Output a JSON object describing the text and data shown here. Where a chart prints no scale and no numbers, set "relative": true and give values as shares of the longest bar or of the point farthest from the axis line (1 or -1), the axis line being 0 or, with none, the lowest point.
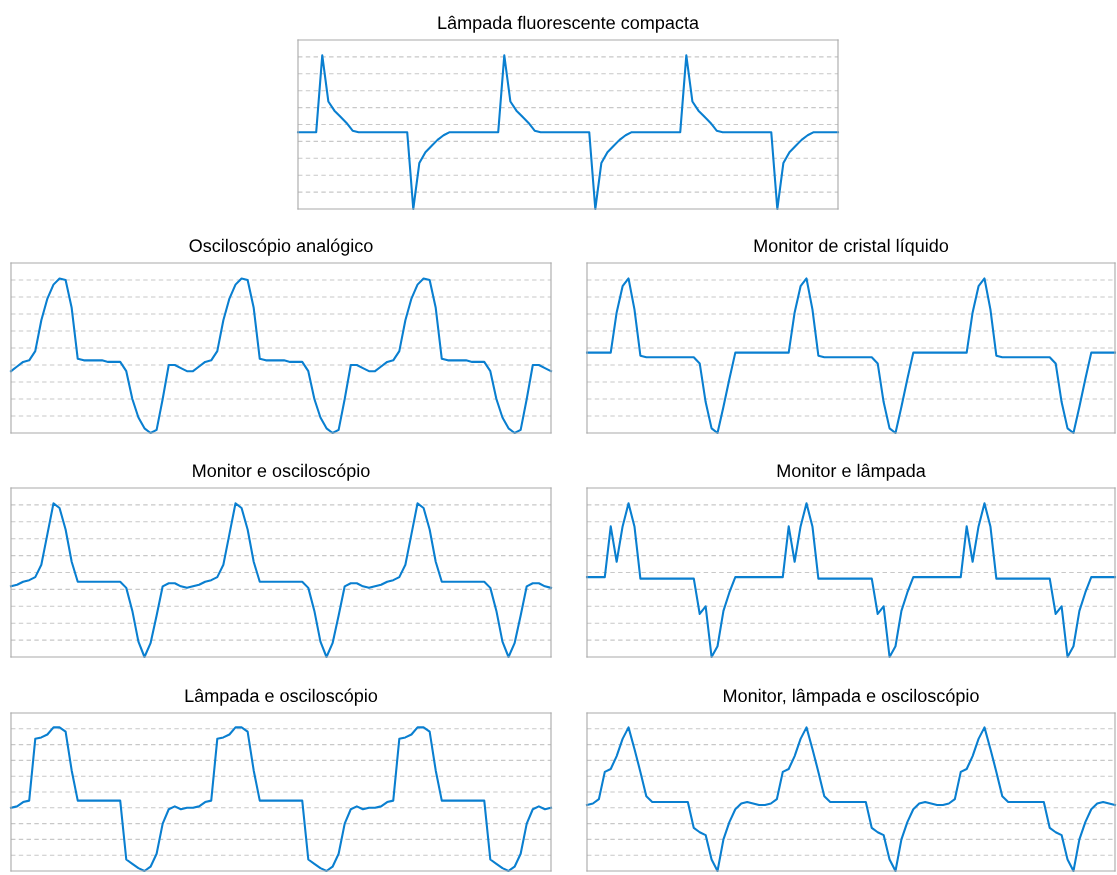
{
  "chart_data": [
    {
      "type": "line",
      "title": "Lâmpada fluorescente compacta",
      "relative": true,
      "grid": "y",
      "categories": [
        null,
        null,
        null,
        null,
        null,
        null,
        null,
        null,
        null,
        null,
        null,
        null,
        null,
        null,
        null,
        null,
        null,
        null,
        null,
        null,
        null,
        null,
        null,
        null,
        null,
        null,
        null,
        null,
        null,
        null,
        null,
        null,
        null,
        null,
        null,
        null,
        null,
        null,
        null,
        null,
        null,
        null,
        null,
        null,
        null,
        null,
        null,
        null,
        null,
        null,
        null,
        null,
        null,
        null,
        null,
        null,
        null,
        null,
        null,
        null,
        null,
        null,
        null,
        null,
        null,
        null,
        null,
        null,
        null,
        null,
        null,
        null,
        null,
        null,
        null,
        null,
        null,
        null,
        null,
        null,
        null,
        null,
        null,
        null,
        null,
        null,
        null,
        null,
        null,
        null
      ],
      "series": [
        {
          "color": "#0a7fd0",
          "values": [
            0.5,
            0.5,
            0.5,
            0.5,
            1.0,
            0.7,
            0.64,
            0.6,
            0.56,
            0.51,
            0.5,
            0.5,
            0.5,
            0.5,
            0.5,
            0.5,
            0.5,
            0.5,
            0.5,
            0.0,
            0.3,
            0.37,
            0.41,
            0.45,
            0.48,
            0.5,
            0.5,
            0.5,
            0.5,
            0.5,
            0.5,
            0.5,
            0.5,
            0.5,
            1.0,
            0.7,
            0.64,
            0.6,
            0.56,
            0.51,
            0.5,
            0.5,
            0.5,
            0.5,
            0.5,
            0.5,
            0.5,
            0.5,
            0.5,
            0.0,
            0.3,
            0.37,
            0.41,
            0.45,
            0.48,
            0.5,
            0.5,
            0.5,
            0.5,
            0.5,
            0.5,
            0.5,
            0.5,
            0.5,
            1.0,
            0.7,
            0.64,
            0.6,
            0.56,
            0.51,
            0.5,
            0.5,
            0.5,
            0.5,
            0.5,
            0.5,
            0.5,
            0.5,
            0.5,
            0.0,
            0.3,
            0.37,
            0.41,
            0.45,
            0.48,
            0.5,
            0.5,
            0.5,
            0.5,
            0.5
          ]
        }
      ]
    },
    {
      "type": "line",
      "title": "Osciloscópio analógico",
      "relative": true,
      "grid": "y",
      "categories": [
        null,
        null,
        null,
        null,
        null,
        null,
        null,
        null,
        null,
        null,
        null,
        null,
        null,
        null,
        null,
        null,
        null,
        null,
        null,
        null,
        null,
        null,
        null,
        null,
        null,
        null,
        null,
        null,
        null,
        null,
        null,
        null,
        null,
        null,
        null,
        null,
        null,
        null,
        null,
        null,
        null,
        null,
        null,
        null,
        null,
        null,
        null,
        null,
        null,
        null,
        null,
        null,
        null,
        null,
        null,
        null,
        null,
        null,
        null,
        null,
        null,
        null,
        null,
        null,
        null,
        null,
        null,
        null,
        null,
        null,
        null,
        null,
        null,
        null,
        null,
        null,
        null,
        null,
        null,
        null,
        null,
        null,
        null,
        null,
        null,
        null,
        null,
        null,
        null,
        null
      ],
      "series": [
        {
          "color": "#0a7fd0",
          "values": [
            0.4,
            0.43,
            0.46,
            0.47,
            0.53,
            0.73,
            0.87,
            0.96,
            1.0,
            0.99,
            0.81,
            0.48,
            0.47,
            0.47,
            0.47,
            0.47,
            0.46,
            0.46,
            0.46,
            0.4,
            0.22,
            0.1,
            0.03,
            0.0,
            0.02,
            0.22,
            0.44,
            0.44,
            0.42,
            0.4,
            0.4,
            0.43,
            0.46,
            0.47,
            0.53,
            0.73,
            0.87,
            0.96,
            1.0,
            0.99,
            0.81,
            0.48,
            0.47,
            0.47,
            0.47,
            0.47,
            0.46,
            0.46,
            0.46,
            0.4,
            0.22,
            0.1,
            0.03,
            0.0,
            0.02,
            0.22,
            0.44,
            0.44,
            0.42,
            0.4,
            0.4,
            0.43,
            0.46,
            0.47,
            0.53,
            0.73,
            0.87,
            0.96,
            1.0,
            0.99,
            0.81,
            0.48,
            0.47,
            0.47,
            0.47,
            0.47,
            0.46,
            0.46,
            0.46,
            0.4,
            0.22,
            0.1,
            0.03,
            0.0,
            0.02,
            0.22,
            0.44,
            0.44,
            0.42,
            0.4
          ]
        }
      ]
    },
    {
      "type": "line",
      "title": "Monitor de cristal líquido",
      "relative": true,
      "grid": "y",
      "categories": [
        null,
        null,
        null,
        null,
        null,
        null,
        null,
        null,
        null,
        null,
        null,
        null,
        null,
        null,
        null,
        null,
        null,
        null,
        null,
        null,
        null,
        null,
        null,
        null,
        null,
        null,
        null,
        null,
        null,
        null,
        null,
        null,
        null,
        null,
        null,
        null,
        null,
        null,
        null,
        null,
        null,
        null,
        null,
        null,
        null,
        null,
        null,
        null,
        null,
        null,
        null,
        null,
        null,
        null,
        null,
        null,
        null,
        null,
        null,
        null,
        null,
        null,
        null,
        null,
        null,
        null,
        null,
        null,
        null,
        null,
        null,
        null,
        null,
        null,
        null,
        null,
        null,
        null,
        null,
        null,
        null,
        null,
        null,
        null,
        null,
        null,
        null,
        null,
        null,
        null
      ],
      "series": [
        {
          "color": "#0a7fd0",
          "values": [
            0.52,
            0.52,
            0.52,
            0.52,
            0.52,
            0.78,
            0.95,
            1.0,
            0.8,
            0.5,
            0.49,
            0.49,
            0.49,
            0.49,
            0.49,
            0.49,
            0.49,
            0.49,
            0.49,
            0.45,
            0.2,
            0.03,
            0.0,
            0.17,
            0.35,
            0.52,
            0.52,
            0.52,
            0.52,
            0.52,
            0.52,
            0.52,
            0.52,
            0.52,
            0.52,
            0.78,
            0.95,
            1.0,
            0.8,
            0.5,
            0.49,
            0.49,
            0.49,
            0.49,
            0.49,
            0.49,
            0.49,
            0.49,
            0.49,
            0.45,
            0.2,
            0.03,
            0.0,
            0.17,
            0.35,
            0.52,
            0.52,
            0.52,
            0.52,
            0.52,
            0.52,
            0.52,
            0.52,
            0.52,
            0.52,
            0.78,
            0.95,
            1.0,
            0.8,
            0.5,
            0.49,
            0.49,
            0.49,
            0.49,
            0.49,
            0.49,
            0.49,
            0.49,
            0.49,
            0.45,
            0.2,
            0.03,
            0.0,
            0.17,
            0.35,
            0.52,
            0.52,
            0.52,
            0.52,
            0.52
          ]
        }
      ]
    },
    {
      "type": "line",
      "title": "Monitor e osciloscópio",
      "relative": true,
      "grid": "y",
      "categories": [
        null,
        null,
        null,
        null,
        null,
        null,
        null,
        null,
        null,
        null,
        null,
        null,
        null,
        null,
        null,
        null,
        null,
        null,
        null,
        null,
        null,
        null,
        null,
        null,
        null,
        null,
        null,
        null,
        null,
        null,
        null,
        null,
        null,
        null,
        null,
        null,
        null,
        null,
        null,
        null,
        null,
        null,
        null,
        null,
        null,
        null,
        null,
        null,
        null,
        null,
        null,
        null,
        null,
        null,
        null,
        null,
        null,
        null,
        null,
        null,
        null,
        null,
        null,
        null,
        null,
        null,
        null,
        null,
        null,
        null,
        null,
        null,
        null,
        null,
        null,
        null,
        null,
        null,
        null,
        null,
        null,
        null,
        null,
        null,
        null,
        null,
        null,
        null,
        null,
        null
      ],
      "series": [
        {
          "color": "#0a7fd0",
          "values": [
            0.46,
            0.47,
            0.49,
            0.5,
            0.52,
            0.6,
            0.8,
            1.0,
            0.97,
            0.83,
            0.62,
            0.49,
            0.49,
            0.49,
            0.49,
            0.49,
            0.49,
            0.49,
            0.49,
            0.45,
            0.3,
            0.1,
            0.0,
            0.09,
            0.27,
            0.46,
            0.48,
            0.48,
            0.46,
            0.45,
            0.46,
            0.47,
            0.49,
            0.5,
            0.52,
            0.6,
            0.8,
            1.0,
            0.97,
            0.83,
            0.62,
            0.49,
            0.49,
            0.49,
            0.49,
            0.49,
            0.49,
            0.49,
            0.49,
            0.45,
            0.3,
            0.1,
            0.0,
            0.09,
            0.27,
            0.46,
            0.48,
            0.48,
            0.46,
            0.45,
            0.46,
            0.47,
            0.49,
            0.5,
            0.52,
            0.6,
            0.8,
            1.0,
            0.97,
            0.83,
            0.62,
            0.49,
            0.49,
            0.49,
            0.49,
            0.49,
            0.49,
            0.49,
            0.49,
            0.45,
            0.3,
            0.1,
            0.0,
            0.09,
            0.27,
            0.46,
            0.48,
            0.48,
            0.46,
            0.45
          ]
        }
      ]
    },
    {
      "type": "line",
      "title": "Monitor e lâmpada",
      "relative": true,
      "grid": "y",
      "categories": [
        null,
        null,
        null,
        null,
        null,
        null,
        null,
        null,
        null,
        null,
        null,
        null,
        null,
        null,
        null,
        null,
        null,
        null,
        null,
        null,
        null,
        null,
        null,
        null,
        null,
        null,
        null,
        null,
        null,
        null,
        null,
        null,
        null,
        null,
        null,
        null,
        null,
        null,
        null,
        null,
        null,
        null,
        null,
        null,
        null,
        null,
        null,
        null,
        null,
        null,
        null,
        null,
        null,
        null,
        null,
        null,
        null,
        null,
        null,
        null,
        null,
        null,
        null,
        null,
        null,
        null,
        null,
        null,
        null,
        null,
        null,
        null,
        null,
        null,
        null,
        null,
        null,
        null,
        null,
        null,
        null,
        null,
        null,
        null,
        null,
        null,
        null,
        null,
        null,
        null
      ],
      "series": [
        {
          "color": "#0a7fd0",
          "values": [
            0.52,
            0.52,
            0.52,
            0.52,
            0.85,
            0.62,
            0.85,
            1.0,
            0.85,
            0.51,
            0.51,
            0.51,
            0.51,
            0.51,
            0.51,
            0.51,
            0.51,
            0.51,
            0.51,
            0.28,
            0.33,
            0.0,
            0.07,
            0.3,
            0.42,
            0.52,
            0.52,
            0.52,
            0.52,
            0.52,
            0.52,
            0.52,
            0.52,
            0.52,
            0.85,
            0.62,
            0.85,
            1.0,
            0.85,
            0.51,
            0.51,
            0.51,
            0.51,
            0.51,
            0.51,
            0.51,
            0.51,
            0.51,
            0.51,
            0.28,
            0.33,
            0.0,
            0.07,
            0.3,
            0.42,
            0.52,
            0.52,
            0.52,
            0.52,
            0.52,
            0.52,
            0.52,
            0.52,
            0.52,
            0.85,
            0.62,
            0.85,
            1.0,
            0.85,
            0.51,
            0.51,
            0.51,
            0.51,
            0.51,
            0.51,
            0.51,
            0.51,
            0.51,
            0.51,
            0.28,
            0.33,
            0.0,
            0.07,
            0.3,
            0.42,
            0.52,
            0.52,
            0.52,
            0.52,
            0.52
          ]
        }
      ]
    },
    {
      "type": "line",
      "title": "Lâmpada e osciloscópio",
      "relative": true,
      "grid": "y",
      "categories": [
        null,
        null,
        null,
        null,
        null,
        null,
        null,
        null,
        null,
        null,
        null,
        null,
        null,
        null,
        null,
        null,
        null,
        null,
        null,
        null,
        null,
        null,
        null,
        null,
        null,
        null,
        null,
        null,
        null,
        null,
        null,
        null,
        null,
        null,
        null,
        null,
        null,
        null,
        null,
        null,
        null,
        null,
        null,
        null,
        null,
        null,
        null,
        null,
        null,
        null,
        null,
        null,
        null,
        null,
        null,
        null,
        null,
        null,
        null,
        null,
        null,
        null,
        null,
        null,
        null,
        null,
        null,
        null,
        null,
        null,
        null,
        null,
        null,
        null,
        null,
        null,
        null,
        null,
        null,
        null,
        null,
        null,
        null,
        null,
        null,
        null,
        null,
        null,
        null,
        null
      ],
      "series": [
        {
          "color": "#0a7fd0",
          "values": [
            0.44,
            0.45,
            0.48,
            0.49,
            0.92,
            0.93,
            0.95,
            1.0,
            1.0,
            0.97,
            0.7,
            0.49,
            0.49,
            0.49,
            0.49,
            0.49,
            0.49,
            0.49,
            0.49,
            0.08,
            0.05,
            0.02,
            0.0,
            0.03,
            0.12,
            0.33,
            0.43,
            0.45,
            0.43,
            0.44,
            0.44,
            0.45,
            0.48,
            0.49,
            0.92,
            0.93,
            0.95,
            1.0,
            1.0,
            0.97,
            0.7,
            0.49,
            0.49,
            0.49,
            0.49,
            0.49,
            0.49,
            0.49,
            0.49,
            0.08,
            0.05,
            0.02,
            0.0,
            0.03,
            0.12,
            0.33,
            0.43,
            0.45,
            0.43,
            0.44,
            0.44,
            0.45,
            0.48,
            0.49,
            0.92,
            0.93,
            0.95,
            1.0,
            1.0,
            0.97,
            0.7,
            0.49,
            0.49,
            0.49,
            0.49,
            0.49,
            0.49,
            0.49,
            0.49,
            0.08,
            0.05,
            0.02,
            0.0,
            0.03,
            0.12,
            0.33,
            0.43,
            0.45,
            0.43,
            0.44
          ]
        }
      ]
    },
    {
      "type": "line",
      "title": "Monitor, lâmpada e osciloscópio",
      "relative": true,
      "grid": "y",
      "categories": [
        null,
        null,
        null,
        null,
        null,
        null,
        null,
        null,
        null,
        null,
        null,
        null,
        null,
        null,
        null,
        null,
        null,
        null,
        null,
        null,
        null,
        null,
        null,
        null,
        null,
        null,
        null,
        null,
        null,
        null,
        null,
        null,
        null,
        null,
        null,
        null,
        null,
        null,
        null,
        null,
        null,
        null,
        null,
        null,
        null,
        null,
        null,
        null,
        null,
        null,
        null,
        null,
        null,
        null,
        null,
        null,
        null,
        null,
        null,
        null,
        null,
        null,
        null,
        null,
        null,
        null,
        null,
        null,
        null,
        null,
        null,
        null,
        null,
        null,
        null,
        null,
        null,
        null,
        null,
        null,
        null,
        null,
        null,
        null,
        null,
        null,
        null,
        null,
        null,
        null
      ],
      "series": [
        {
          "color": "#0a7fd0",
          "values": [
            0.46,
            0.47,
            0.5,
            0.69,
            0.71,
            0.8,
            0.92,
            1.0,
            0.85,
            0.69,
            0.52,
            0.48,
            0.48,
            0.48,
            0.48,
            0.48,
            0.48,
            0.48,
            0.3,
            0.27,
            0.25,
            0.08,
            0.0,
            0.22,
            0.34,
            0.43,
            0.47,
            0.48,
            0.47,
            0.46,
            0.46,
            0.47,
            0.5,
            0.69,
            0.71,
            0.8,
            0.92,
            1.0,
            0.85,
            0.69,
            0.52,
            0.48,
            0.48,
            0.48,
            0.48,
            0.48,
            0.48,
            0.48,
            0.3,
            0.27,
            0.25,
            0.08,
            0.0,
            0.22,
            0.34,
            0.43,
            0.47,
            0.48,
            0.47,
            0.46,
            0.46,
            0.47,
            0.5,
            0.69,
            0.71,
            0.8,
            0.92,
            1.0,
            0.85,
            0.69,
            0.52,
            0.48,
            0.48,
            0.48,
            0.48,
            0.48,
            0.48,
            0.48,
            0.3,
            0.27,
            0.25,
            0.08,
            0.0,
            0.22,
            0.34,
            0.43,
            0.47,
            0.48,
            0.47,
            0.46
          ]
        }
      ]
    }
  ]
}
